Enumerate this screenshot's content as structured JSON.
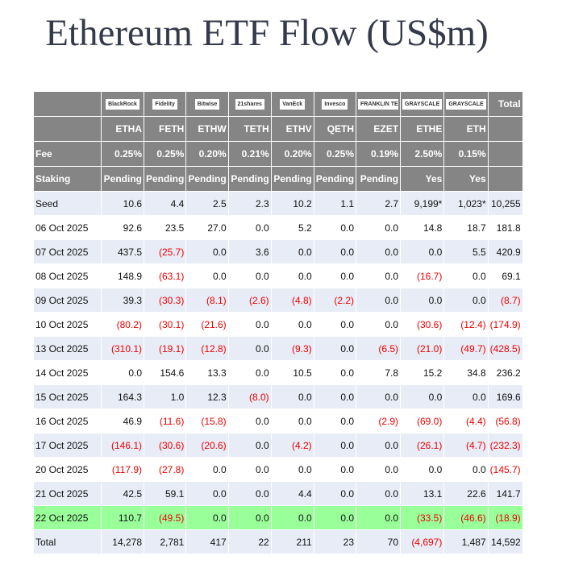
{
  "title": "Ethereum ETF Flow (US$m)",
  "fee_label": "Fee",
  "staking_label": "Staking",
  "total_header": "Total",
  "columns": [
    {
      "brand": "BlackRock",
      "ticker": "ETHA",
      "fee": "0.25%",
      "staking": "Pending"
    },
    {
      "brand": "Fidelity",
      "ticker": "FETH",
      "fee": "0.25%",
      "staking": "Pending"
    },
    {
      "brand": "Bitwise",
      "ticker": "ETHW",
      "fee": "0.20%",
      "staking": "Pending"
    },
    {
      "brand": "21shares",
      "ticker": "TETH",
      "fee": "0.21%",
      "staking": "Pending"
    },
    {
      "brand": "VanEck",
      "ticker": "ETHV",
      "fee": "0.20%",
      "staking": "Pending"
    },
    {
      "brand": "Invesco",
      "ticker": "QETH",
      "fee": "0.25%",
      "staking": "Pending"
    },
    {
      "brand": "FRANKLIN TEMPLETON",
      "ticker": "EZET",
      "fee": "0.19%",
      "staking": "Pending"
    },
    {
      "brand": "GRAYSCALE",
      "ticker": "ETHE",
      "fee": "2.50%",
      "staking": "Yes"
    },
    {
      "brand": "GRAYSCALE",
      "ticker": "ETH",
      "fee": "0.15%",
      "staking": "Yes"
    }
  ],
  "highlight_row": 13,
  "rows": [
    {
      "label": "Seed",
      "cells": [
        "10.6",
        "4.4",
        "2.5",
        "2.3",
        "10.2",
        "1.1",
        "2.7",
        "9,199*",
        "1,023*",
        "10,255"
      ]
    },
    {
      "label": "06 Oct 2025",
      "cells": [
        "92.6",
        "23.5",
        "27.0",
        "0.0",
        "5.2",
        "0.0",
        "0.0",
        "14.8",
        "18.7",
        "181.8"
      ]
    },
    {
      "label": "07 Oct 2025",
      "cells": [
        "437.5",
        "(25.7)",
        "0.0",
        "3.6",
        "0.0",
        "0.0",
        "0.0",
        "0.0",
        "5.5",
        "420.9"
      ]
    },
    {
      "label": "08 Oct 2025",
      "cells": [
        "148.9",
        "(63.1)",
        "0.0",
        "0.0",
        "0.0",
        "0.0",
        "0.0",
        "(16.7)",
        "0.0",
        "69.1"
      ]
    },
    {
      "label": "09 Oct 2025",
      "cells": [
        "39.3",
        "(30.3)",
        "(8.1)",
        "(2.6)",
        "(4.8)",
        "(2.2)",
        "0.0",
        "0.0",
        "0.0",
        "(8.7)"
      ]
    },
    {
      "label": "10 Oct 2025",
      "cells": [
        "(80.2)",
        "(30.1)",
        "(21.6)",
        "0.0",
        "0.0",
        "0.0",
        "0.0",
        "(30.6)",
        "(12.4)",
        "(174.9)"
      ]
    },
    {
      "label": "13 Oct 2025",
      "cells": [
        "(310.1)",
        "(19.1)",
        "(12.8)",
        "0.0",
        "(9.3)",
        "0.0",
        "(6.5)",
        "(21.0)",
        "(49.7)",
        "(428.5)"
      ]
    },
    {
      "label": "14 Oct 2025",
      "cells": [
        "0.0",
        "154.6",
        "13.3",
        "0.0",
        "10.5",
        "0.0",
        "7.8",
        "15.2",
        "34.8",
        "236.2"
      ]
    },
    {
      "label": "15 Oct 2025",
      "cells": [
        "164.3",
        "1.0",
        "12.3",
        "(8.0)",
        "0.0",
        "0.0",
        "0.0",
        "0.0",
        "0.0",
        "169.6"
      ]
    },
    {
      "label": "16 Oct 2025",
      "cells": [
        "46.9",
        "(11.6)",
        "(15.8)",
        "0.0",
        "0.0",
        "0.0",
        "(2.9)",
        "(69.0)",
        "(4.4)",
        "(56.8)"
      ]
    },
    {
      "label": "17 Oct 2025",
      "cells": [
        "(146.1)",
        "(30.6)",
        "(20.6)",
        "0.0",
        "(4.2)",
        "0.0",
        "0.0",
        "(26.1)",
        "(4.7)",
        "(232.3)"
      ]
    },
    {
      "label": "20 Oct 2025",
      "cells": [
        "(117.9)",
        "(27.8)",
        "0.0",
        "0.0",
        "0.0",
        "0.0",
        "0.0",
        "0.0",
        "0.0",
        "(145.7)"
      ]
    },
    {
      "label": "21 Oct 2025",
      "cells": [
        "42.5",
        "59.1",
        "0.0",
        "0.0",
        "4.4",
        "0.0",
        "0.0",
        "13.1",
        "22.6",
        "141.7"
      ]
    },
    {
      "label": "22 Oct 2025",
      "cells": [
        "110.7",
        "(49.5)",
        "0.0",
        "0.0",
        "0.0",
        "0.0",
        "0.0",
        "(33.5)",
        "(46.6)",
        "(18.9)"
      ]
    },
    {
      "label": "Total",
      "cells": [
        "14,278",
        "2,781",
        "417",
        "22",
        "211",
        "23",
        "70",
        "(4,697)",
        "1,487",
        "14,592"
      ]
    }
  ]
}
